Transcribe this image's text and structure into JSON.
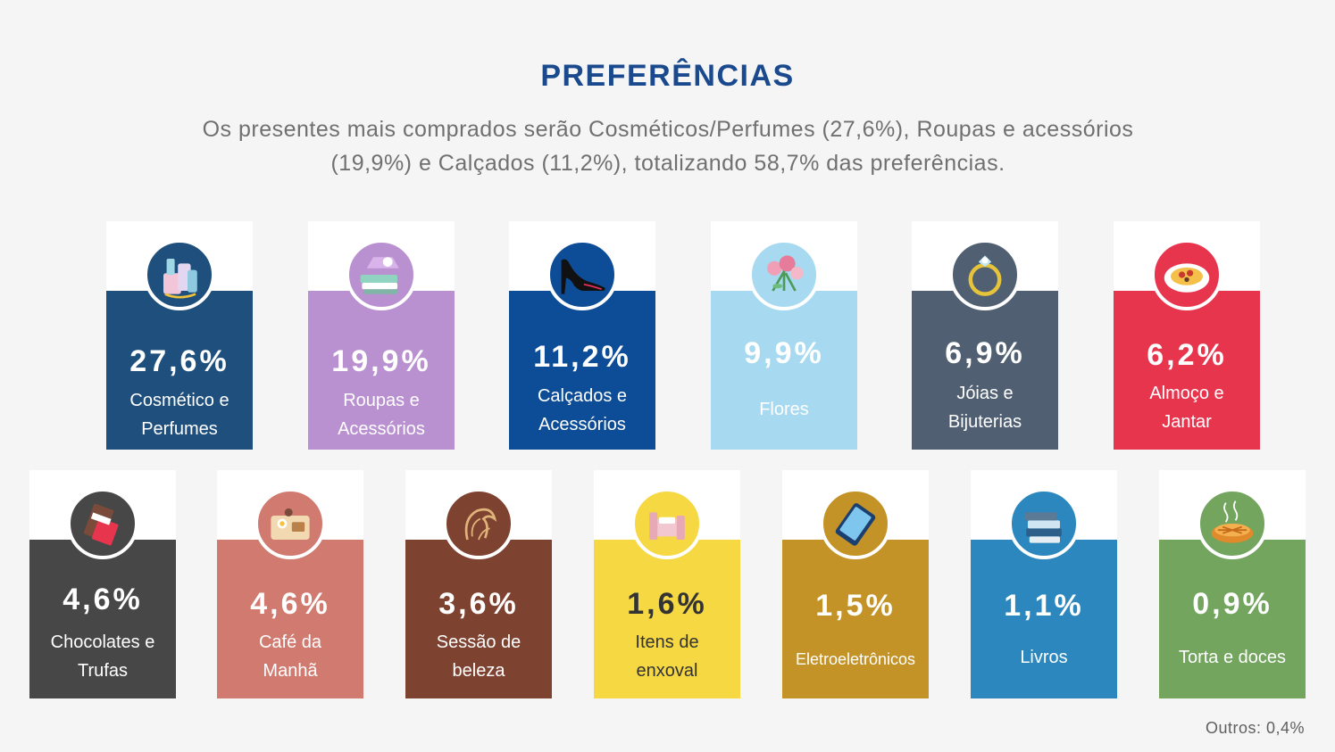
{
  "header": {
    "title": "PREFERÊNCIAS",
    "subtitle": "Os presentes mais comprados serão Cosméticos/Perfumes (27,6%), Roupas e acessórios (19,9%) e Calçados (11,2%), totalizando 58,7% das preferências."
  },
  "cards": [
    {
      "pct": "27,6%",
      "label": "Cosmético e\nPerfumes",
      "color": "#1e4f7d",
      "circle": "#1e4f7d",
      "icon": "perfume-icon"
    },
    {
      "pct": "19,9%",
      "label": "Roupas e\nAcessórios",
      "color": "#b990d0",
      "circle": "#b990d0",
      "icon": "clothes-icon"
    },
    {
      "pct": "11,2%",
      "label": "Calçados e\nAcessórios",
      "color": "#0d4c96",
      "circle": "#0d4c96",
      "icon": "high-heel-icon"
    },
    {
      "pct": "9,9%",
      "label": "Flores",
      "color": "#a7daf1",
      "circle": "#a7daf1",
      "icon": "flowers-icon"
    },
    {
      "pct": "6,9%",
      "label": "Jóias e\nBijuterias",
      "color": "#505f71",
      "circle": "#505f71",
      "icon": "ring-icon"
    },
    {
      "pct": "6,2%",
      "label": "Almoço e\nJantar",
      "color": "#e8354e",
      "circle": "#e8354e",
      "icon": "dinner-plate-icon"
    },
    {
      "pct": "4,6%",
      "label": "Chocolates e\nTrufas",
      "color": "#474747",
      "circle": "#474747",
      "icon": "chocolate-icon"
    },
    {
      "pct": "4,6%",
      "label": "Café da\nManhã",
      "color": "#d07a70",
      "circle": "#d07a70",
      "icon": "breakfast-icon"
    },
    {
      "pct": "3,6%",
      "label": "Sessão de\nbeleza",
      "color": "#7e4330",
      "circle": "#7e4330",
      "icon": "beauty-session-icon"
    },
    {
      "pct": "1,6%",
      "label": "Itens de\nenxoval",
      "color": "#f6d842",
      "circle": "#f6d842",
      "icon": "cradle-icon"
    },
    {
      "pct": "1,5%",
      "label": "Eletroeletrônicos",
      "color": "#c39328",
      "circle": "#c39328",
      "icon": "tablet-icon"
    },
    {
      "pct": "1,1%",
      "label": "Livros",
      "color": "#2b87bd",
      "circle": "#2b87bd",
      "icon": "books-icon"
    },
    {
      "pct": "0,9%",
      "label": "Torta e doces",
      "color": "#73a55f",
      "circle": "#73a55f",
      "icon": "pie-icon"
    }
  ],
  "footer": {
    "others": "Outros: 0,4%"
  }
}
